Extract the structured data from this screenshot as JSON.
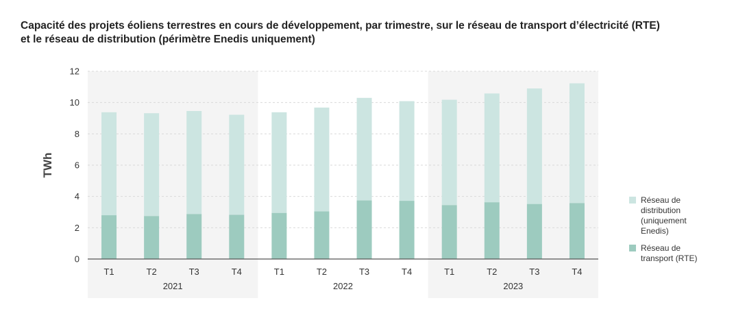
{
  "title_line1": "Capacité des projets éoliens terrestres en cours de développement, par trimestre, sur le réseau de transport d’électricité (RTE)",
  "title_line2": "et le réseau de distribution (périmètre Enedis uniquement)",
  "colors": {
    "rte": "#9dcbbf",
    "enedis": "#cce5e1",
    "band": "#f4f4f4",
    "grid": "#d9d9d9",
    "axis": "#555555"
  },
  "chart_data": {
    "type": "bar",
    "stacked": true,
    "ylabel": "TWh",
    "ylim": [
      0,
      12
    ],
    "yticks": [
      0,
      2,
      4,
      6,
      8,
      10,
      12
    ],
    "grid": true,
    "legend_position": "right",
    "categories": [
      "T1",
      "T2",
      "T3",
      "T4",
      "T1",
      "T2",
      "T3",
      "T4",
      "T1",
      "T2",
      "T3",
      "T4"
    ],
    "groups": [
      {
        "label": "2021",
        "count": 4,
        "shaded": true
      },
      {
        "label": "2022",
        "count": 4,
        "shaded": false
      },
      {
        "label": "2023",
        "count": 4,
        "shaded": true
      }
    ],
    "series": [
      {
        "name": "Réseau de transport (RTE)",
        "color_key": "rte",
        "values": [
          2.8,
          2.75,
          2.88,
          2.83,
          2.95,
          3.05,
          3.75,
          3.72,
          3.45,
          3.63,
          3.52,
          3.58
        ]
      },
      {
        "name": "Réseau de distribution (uniquement Enedis)",
        "color_key": "enedis",
        "values": [
          6.58,
          6.57,
          6.58,
          6.39,
          6.43,
          6.63,
          6.55,
          6.37,
          6.73,
          6.95,
          7.38,
          7.65
        ]
      }
    ]
  },
  "legend": {
    "items": [
      {
        "lines": [
          "Réseau de",
          "distribution",
          "(uniquement",
          "Enedis)"
        ],
        "color_key": "enedis"
      },
      {
        "lines": [
          "Réseau de",
          "transport (RTE)"
        ],
        "color_key": "rte"
      }
    ]
  }
}
